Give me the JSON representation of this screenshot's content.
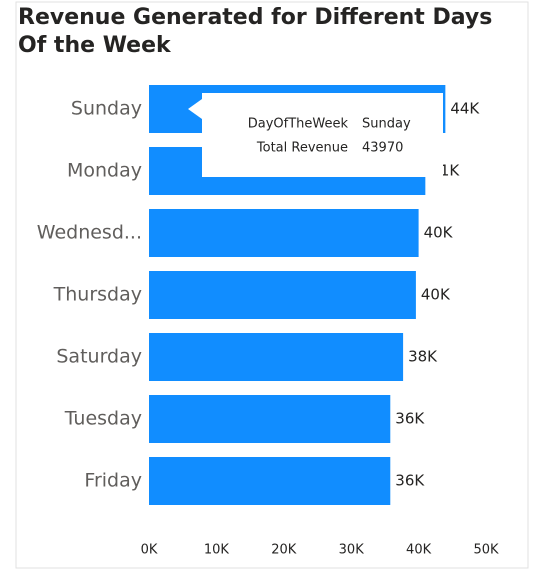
{
  "chart_data": {
    "type": "hbar",
    "title": [
      "Revenue Generated for Different Days",
      "Of the Week"
    ],
    "categories": [
      "Sunday",
      "Monday",
      "Wednesd...",
      "Thursday",
      "Saturday",
      "Tuesday",
      "Friday"
    ],
    "values": [
      43970,
      41000,
      40000,
      39600,
      37700,
      35800,
      35800
    ],
    "value_labels": [
      "44K",
      "41K",
      "40K",
      "40K",
      "38K",
      "36K",
      "36K"
    ],
    "color": "#118dff",
    "xlim": [
      0,
      50000
    ],
    "xticks": [
      {
        "value": 0,
        "label": "0K"
      },
      {
        "value": 10000,
        "label": "10K"
      },
      {
        "value": 20000,
        "label": "20K"
      },
      {
        "value": 30000,
        "label": "30K"
      },
      {
        "value": 40000,
        "label": "40K"
      },
      {
        "value": 50000,
        "label": "50K"
      }
    ],
    "grid": false,
    "tooltip": {
      "category_field": "DayOfTheWeek",
      "value_field": "Total Revenue",
      "point": 0
    }
  }
}
